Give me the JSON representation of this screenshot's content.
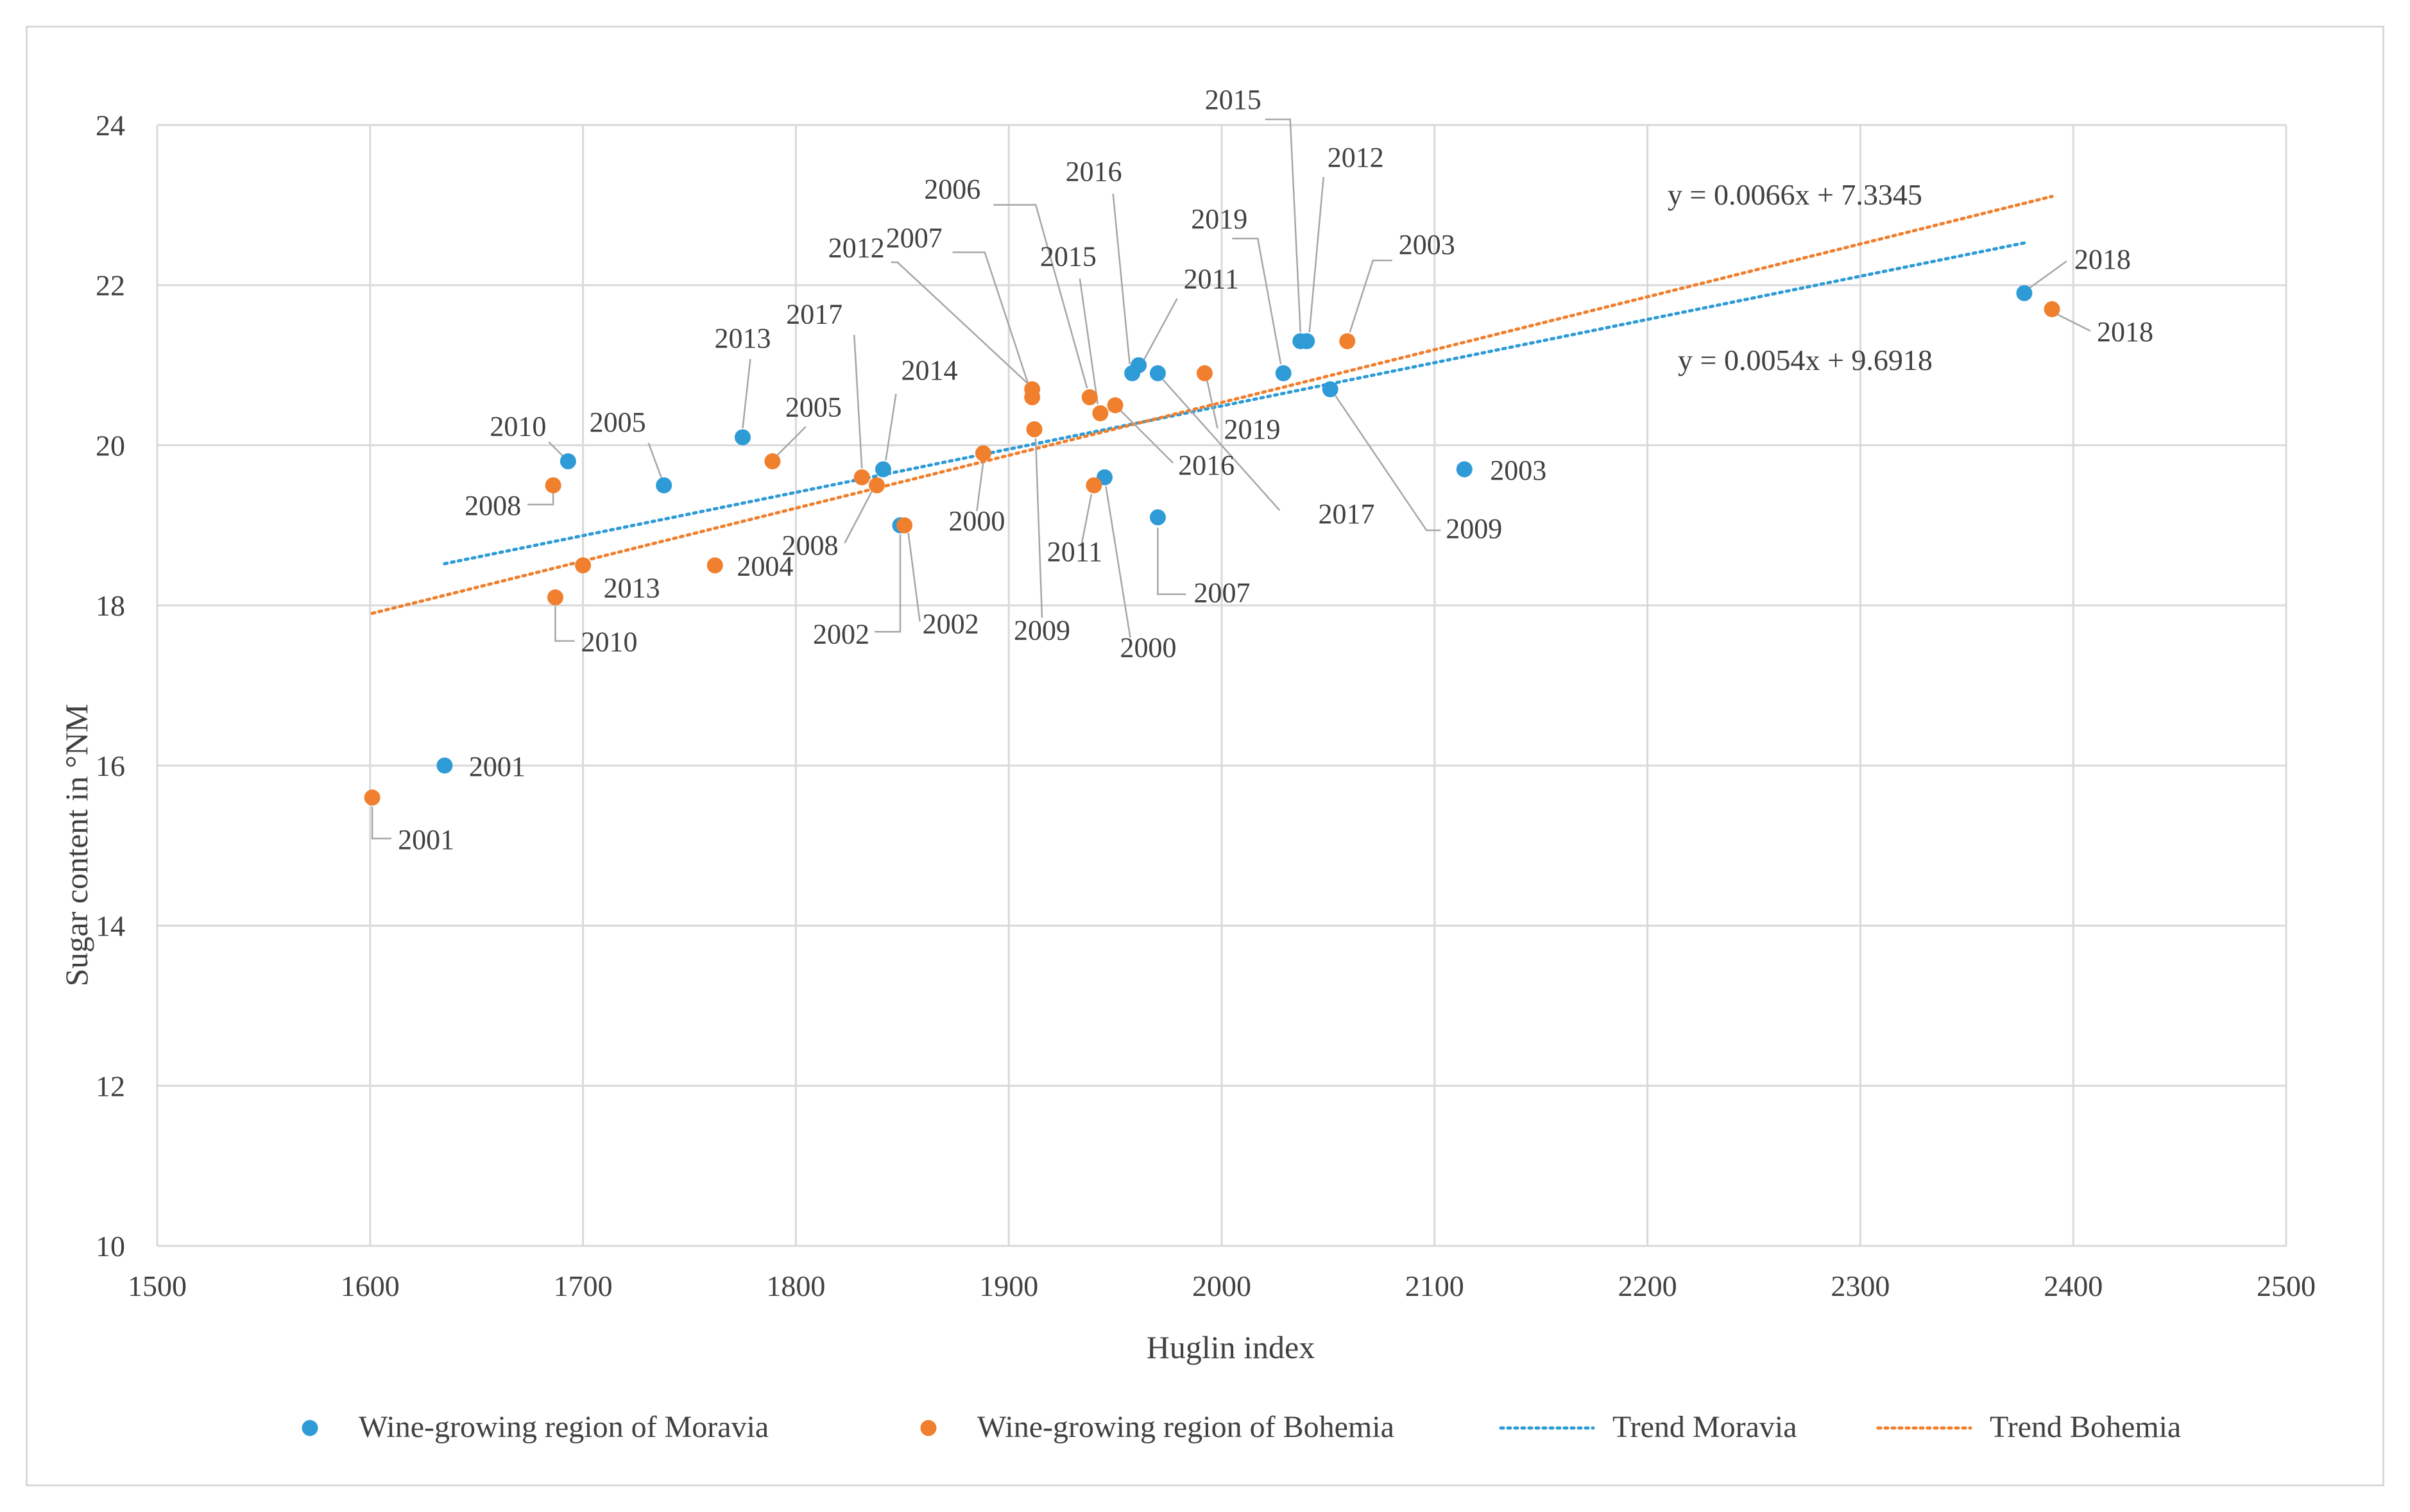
{
  "chart_data": {
    "type": "scatter",
    "title": "",
    "xlabel": "Huglin index",
    "ylabel": "Sugar content in °NM",
    "xlim": [
      1500,
      2500
    ],
    "ylim": [
      10,
      24
    ],
    "xticks": [
      "1500",
      "1600",
      "1700",
      "1800",
      "1900",
      "2000",
      "2100",
      "2200",
      "2300",
      "2400",
      "2500"
    ],
    "yticks": [
      "10",
      "12",
      "14",
      "16",
      "18",
      "20",
      "22",
      "24"
    ],
    "grid": true,
    "legend_position": "bottom",
    "colors": {
      "moravia": "#2e9bd6",
      "bohemia": "#f07f2e"
    },
    "series": [
      {
        "name": "Wine-growing region of Moravia",
        "key": "moravia",
        "points": [
          {
            "x": 1635,
            "y": 16.0,
            "label": "2001"
          },
          {
            "x": 1693,
            "y": 19.8,
            "label": "2010"
          },
          {
            "x": 1738,
            "y": 19.5,
            "label": "2005"
          },
          {
            "x": 1775,
            "y": 20.1,
            "label": "2013"
          },
          {
            "x": 1841,
            "y": 19.7,
            "label": "2014"
          },
          {
            "x": 1849,
            "y": 19.0,
            "label": "2002"
          },
          {
            "x": 1945,
            "y": 19.6,
            "label": "2000"
          },
          {
            "x": 1958,
            "y": 20.9,
            "label": "2016"
          },
          {
            "x": 1961,
            "y": 21.0,
            "label": "2011"
          },
          {
            "x": 1970,
            "y": 20.9,
            "label": "2017"
          },
          {
            "x": 1970,
            "y": 19.1,
            "label": "2007"
          },
          {
            "x": 2029,
            "y": 20.9,
            "label": "2019"
          },
          {
            "x": 2037,
            "y": 21.3,
            "label": "2015"
          },
          {
            "x": 2040,
            "y": 21.3,
            "label": "2012"
          },
          {
            "x": 2051,
            "y": 20.7,
            "label": "2009"
          },
          {
            "x": 2114,
            "y": 19.7,
            "label": "2003"
          },
          {
            "x": 2377,
            "y": 21.9,
            "label": "2018"
          }
        ]
      },
      {
        "name": "Wine-growing region of Bohemia",
        "key": "bohemia",
        "points": [
          {
            "x": 1601,
            "y": 15.6,
            "label": "2001"
          },
          {
            "x": 1686,
            "y": 19.5,
            "label": "2008"
          },
          {
            "x": 1687,
            "y": 18.1,
            "label": "2010"
          },
          {
            "x": 1700,
            "y": 18.5,
            "label": "2013"
          },
          {
            "x": 1762,
            "y": 18.5,
            "label": "2004"
          },
          {
            "x": 1789,
            "y": 19.8,
            "label": "2005"
          },
          {
            "x": 1831,
            "y": 19.6,
            "label": "2017"
          },
          {
            "x": 1838,
            "y": 19.5,
            "label": "2008"
          },
          {
            "x": 1851,
            "y": 19.0,
            "label": "2002"
          },
          {
            "x": 1888,
            "y": 19.9,
            "label": "2000"
          },
          {
            "x": 1911,
            "y": 20.7,
            "label": "2012"
          },
          {
            "x": 1911,
            "y": 20.6,
            "label": "2007"
          },
          {
            "x": 1912,
            "y": 20.2,
            "label": "2009"
          },
          {
            "x": 1938,
            "y": 20.6,
            "label": "2006"
          },
          {
            "x": 1940,
            "y": 19.5,
            "label": "2011"
          },
          {
            "x": 1943,
            "y": 20.4,
            "label": "2015"
          },
          {
            "x": 1950,
            "y": 20.5,
            "label": "2016"
          },
          {
            "x": 1992,
            "y": 20.9,
            "label": "2019"
          },
          {
            "x": 2059,
            "y": 21.3,
            "label": "2003"
          },
          {
            "x": 2390,
            "y": 21.7,
            "label": "2018"
          }
        ]
      }
    ],
    "trendlines": [
      {
        "name": "Trend Moravia",
        "key": "moravia",
        "slope": 0.0054,
        "intercept": 9.6918,
        "x_range": [
          1635,
          2377
        ],
        "equation": "y = 0.0054x + 9.6918"
      },
      {
        "name": "Trend Bohemia",
        "key": "bohemia",
        "slope": 0.0066,
        "intercept": 7.3345,
        "x_range": [
          1601,
          2390
        ],
        "equation": "y = 0.0066x + 7.3345"
      }
    ],
    "legend": [
      {
        "label": "Wine-growing region of Moravia",
        "kind": "marker",
        "key": "moravia"
      },
      {
        "label": "Wine-growing region of Bohemia",
        "kind": "marker",
        "key": "bohemia"
      },
      {
        "label": "Trend Moravia",
        "kind": "dotted-line",
        "key": "moravia"
      },
      {
        "label": "Trend Bohemia",
        "kind": "dotted-line",
        "key": "bohemia"
      }
    ]
  }
}
